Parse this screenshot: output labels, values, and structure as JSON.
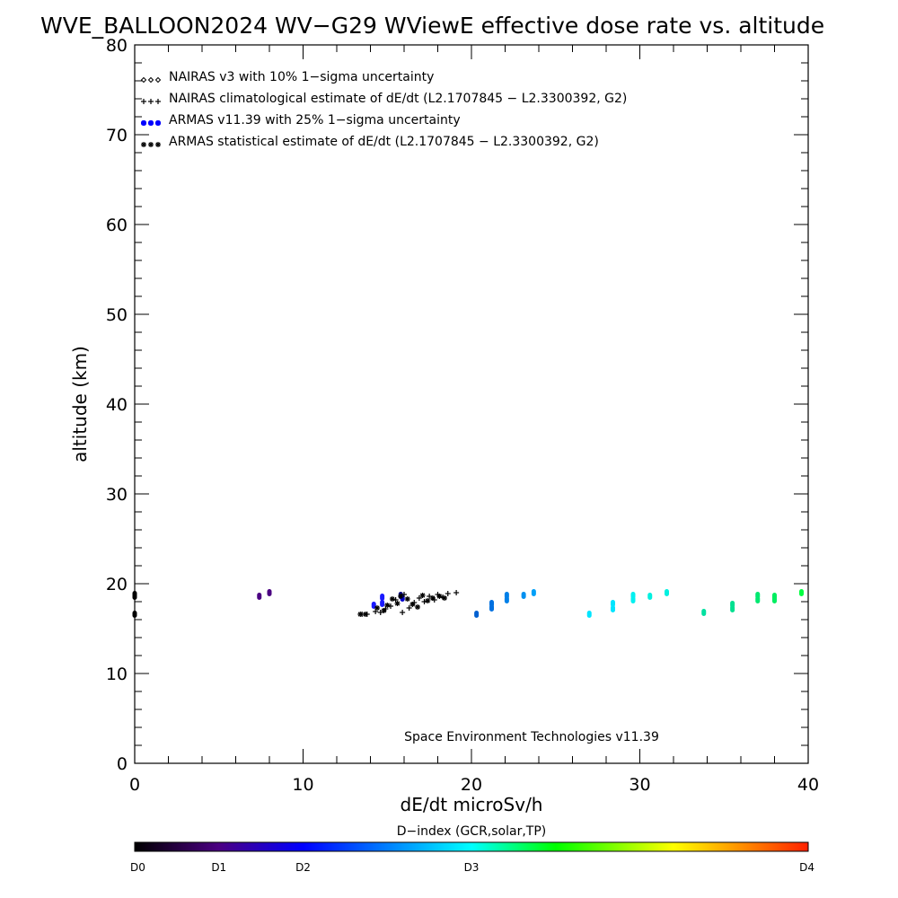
{
  "chart_data": {
    "type": "scatter",
    "title": "WVE_BALLOON2024 WV−G29 WViewE effective dose rate vs. altitude",
    "xlabel": "dE/dt microSv/h",
    "ylabel": "altitude (km)",
    "xlim": [
      0,
      40
    ],
    "ylim": [
      0,
      80
    ],
    "x_ticks": [
      "0",
      "10",
      "20",
      "30",
      "40"
    ],
    "y_ticks": [
      "0",
      "10",
      "20",
      "30",
      "40",
      "50",
      "60",
      "70",
      "80"
    ],
    "x_tick_values": [
      0,
      10,
      20,
      30,
      40
    ],
    "y_tick_values": [
      0,
      10,
      20,
      30,
      40,
      50,
      60,
      70,
      80
    ],
    "grid": false,
    "legend_position": "top-left",
    "legend": [
      {
        "marker": "diamond",
        "color": "#000000",
        "text": "NAIRAS v3 with 10% 1−sigma uncertainty"
      },
      {
        "marker": "plus",
        "color": "#000000",
        "text": "NAIRAS climatological estimate of dE/dt (L2.1707845 − L2.3300392, G2)"
      },
      {
        "marker": "dot",
        "color": "#0000ff",
        "text": "ARMAS v11.39 with 25% 1−sigma uncertainty"
      },
      {
        "marker": "asterisk",
        "color": "#000000",
        "text": "ARMAS statistical estimate of dE/dt (L2.1707845 − L2.3300392, G2)"
      }
    ],
    "annotation": "Space Environment Technologies v11.39",
    "colorbar": {
      "title": "D−index (GCR,solar,TP)",
      "labels": [
        {
          "text": "D0",
          "value": 0
        },
        {
          "text": "D1",
          "value": 1
        },
        {
          "text": "D2",
          "value": 2
        },
        {
          "text": "D3",
          "value": 3
        },
        {
          "text": "D4",
          "value": 4
        }
      ],
      "label_positions": [
        0,
        0.125,
        0.25,
        0.5,
        1.0
      ],
      "colors": [
        "#000000",
        "#4b0082",
        "#0000ff",
        "#00ffff",
        "#00ff00",
        "#ffff00",
        "#ff0000"
      ]
    },
    "series": [
      {
        "marker": "dot",
        "points": [
          {
            "x": 0.0,
            "y": 18.8,
            "c": "#000000"
          },
          {
            "x": 0.0,
            "y": 18.6,
            "c": "#000000"
          },
          {
            "x": 0.0,
            "y": 16.6,
            "c": "#000000"
          },
          {
            "x": 7.4,
            "y": 18.6,
            "c": "#4b0082"
          },
          {
            "x": 8.0,
            "y": 19.0,
            "c": "#4b0082"
          },
          {
            "x": 14.2,
            "y": 17.6,
            "c": "#1a1aff"
          },
          {
            "x": 14.7,
            "y": 18.5,
            "c": "#1a1aff"
          },
          {
            "x": 14.7,
            "y": 17.8,
            "c": "#1a1aff"
          },
          {
            "x": 15.8,
            "y": 18.7,
            "c": "#000080"
          },
          {
            "x": 15.9,
            "y": 18.4,
            "c": "#0000cd"
          },
          {
            "x": 20.3,
            "y": 16.6,
            "c": "#0060d0"
          },
          {
            "x": 21.2,
            "y": 17.8,
            "c": "#0070e0"
          },
          {
            "x": 21.2,
            "y": 17.3,
            "c": "#0070e0"
          },
          {
            "x": 22.1,
            "y": 18.7,
            "c": "#0080e8"
          },
          {
            "x": 22.1,
            "y": 18.2,
            "c": "#0080e8"
          },
          {
            "x": 23.1,
            "y": 18.7,
            "c": "#0090f0"
          },
          {
            "x": 23.7,
            "y": 19.0,
            "c": "#00a0f8"
          },
          {
            "x": 27.0,
            "y": 16.6,
            "c": "#00e5ff"
          },
          {
            "x": 28.4,
            "y": 17.8,
            "c": "#00e5ff"
          },
          {
            "x": 28.4,
            "y": 17.2,
            "c": "#00e5ff"
          },
          {
            "x": 29.6,
            "y": 18.7,
            "c": "#00f0f0"
          },
          {
            "x": 29.6,
            "y": 18.2,
            "c": "#00f0f0"
          },
          {
            "x": 30.6,
            "y": 18.6,
            "c": "#00f0e0"
          },
          {
            "x": 31.6,
            "y": 19.0,
            "c": "#00f0e0"
          },
          {
            "x": 33.8,
            "y": 16.8,
            "c": "#00e0a0"
          },
          {
            "x": 35.5,
            "y": 17.7,
            "c": "#00e090"
          },
          {
            "x": 35.5,
            "y": 17.2,
            "c": "#00e090"
          },
          {
            "x": 37.0,
            "y": 18.7,
            "c": "#00e870"
          },
          {
            "x": 37.0,
            "y": 18.2,
            "c": "#00e870"
          },
          {
            "x": 38.0,
            "y": 18.6,
            "c": "#00ee60"
          },
          {
            "x": 38.0,
            "y": 18.2,
            "c": "#00ee60"
          },
          {
            "x": 39.6,
            "y": 19.0,
            "c": "#00ff40"
          }
        ]
      },
      {
        "marker": "plus",
        "points": [
          {
            "x": 13.5,
            "y": 16.6
          },
          {
            "x": 13.8,
            "y": 16.6
          },
          {
            "x": 14.3,
            "y": 16.9
          },
          {
            "x": 14.6,
            "y": 16.8
          },
          {
            "x": 14.9,
            "y": 17.2
          },
          {
            "x": 15.2,
            "y": 17.5
          },
          {
            "x": 15.5,
            "y": 18.2
          },
          {
            "x": 15.9,
            "y": 16.8
          },
          {
            "x": 16.0,
            "y": 18.8
          },
          {
            "x": 16.3,
            "y": 17.3
          },
          {
            "x": 16.6,
            "y": 17.9
          },
          {
            "x": 16.9,
            "y": 18.4
          },
          {
            "x": 17.2,
            "y": 18.0
          },
          {
            "x": 17.5,
            "y": 18.6
          },
          {
            "x": 17.8,
            "y": 18.2
          },
          {
            "x": 18.0,
            "y": 18.8
          },
          {
            "x": 18.3,
            "y": 18.5
          },
          {
            "x": 18.6,
            "y": 18.9
          },
          {
            "x": 19.1,
            "y": 19.0
          }
        ]
      },
      {
        "marker": "asterisk",
        "points": [
          {
            "x": 13.4,
            "y": 16.6
          },
          {
            "x": 13.7,
            "y": 16.6
          },
          {
            "x": 14.4,
            "y": 17.3
          },
          {
            "x": 14.8,
            "y": 17.0
          },
          {
            "x": 15.0,
            "y": 17.6
          },
          {
            "x": 15.3,
            "y": 18.3
          },
          {
            "x": 15.6,
            "y": 17.8
          },
          {
            "x": 15.8,
            "y": 18.6
          },
          {
            "x": 16.2,
            "y": 18.3
          },
          {
            "x": 16.5,
            "y": 17.7
          },
          {
            "x": 16.8,
            "y": 17.4
          },
          {
            "x": 17.1,
            "y": 18.7
          },
          {
            "x": 17.4,
            "y": 18.1
          },
          {
            "x": 17.7,
            "y": 18.4
          },
          {
            "x": 18.1,
            "y": 18.6
          },
          {
            "x": 18.4,
            "y": 18.4
          }
        ]
      }
    ]
  }
}
